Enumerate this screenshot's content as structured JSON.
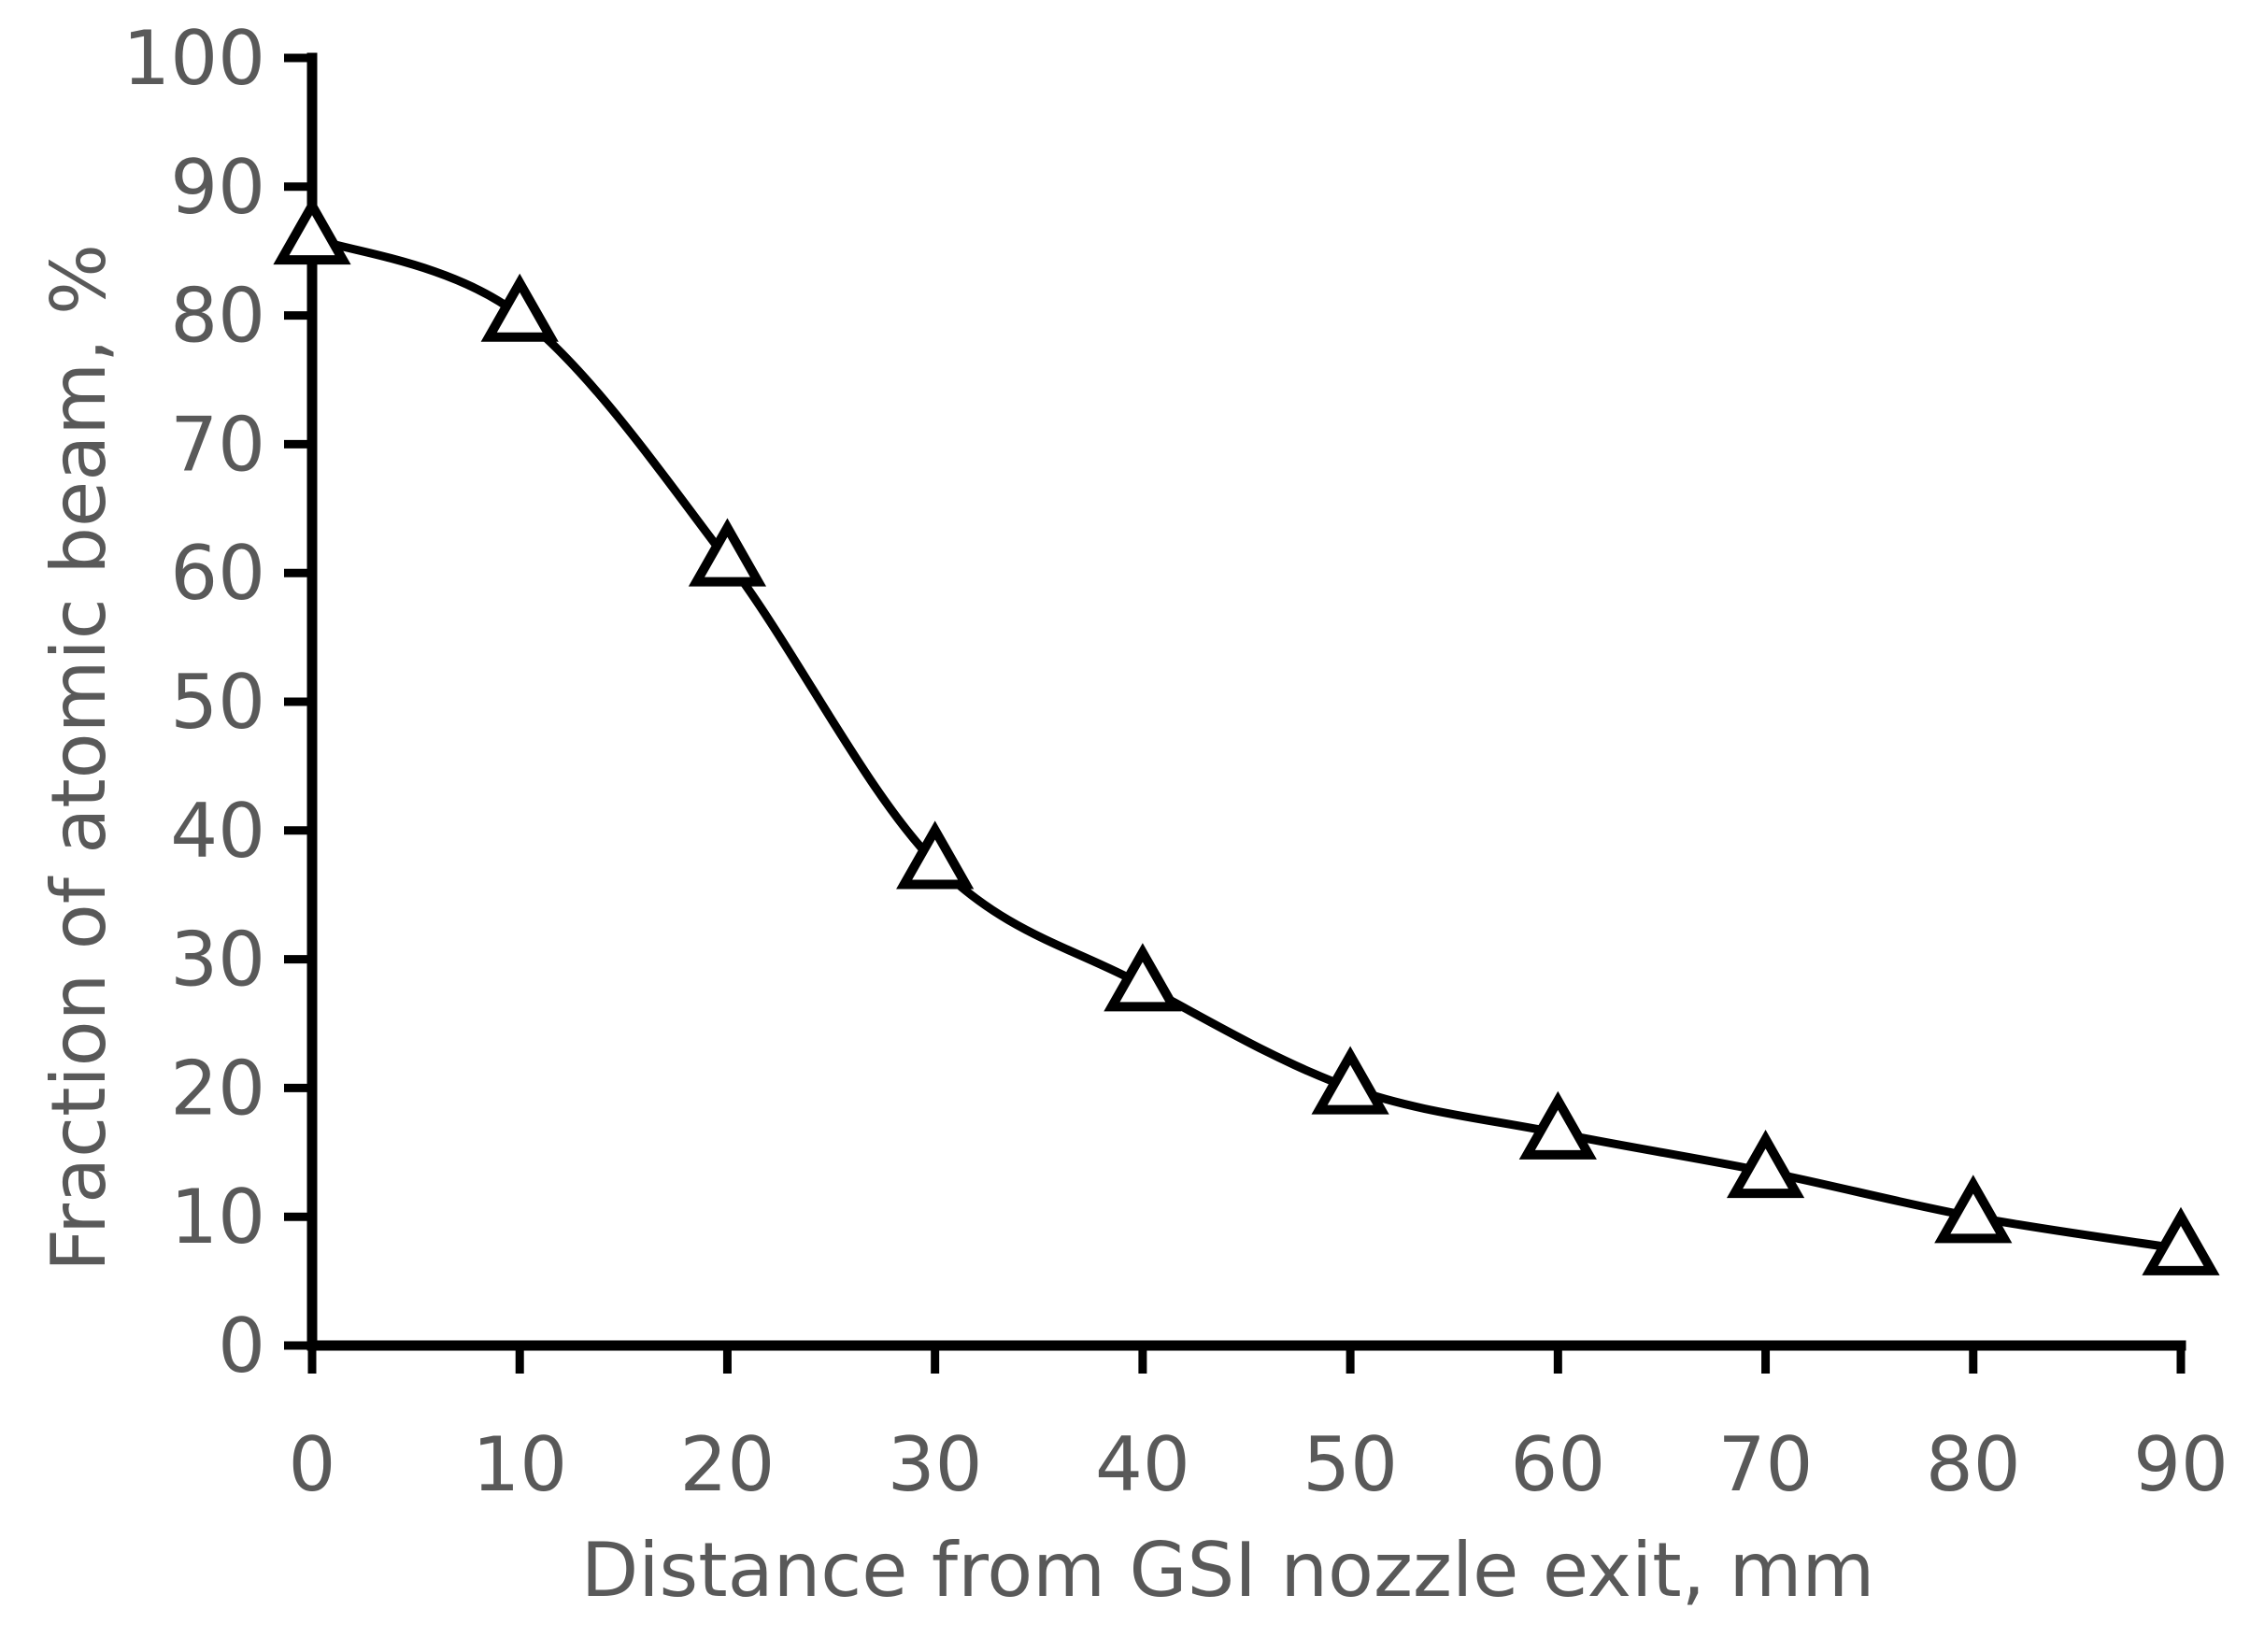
{
  "chart_data": {
    "type": "line",
    "title": "",
    "xlabel": "Distance from GSI nozzle exit, mm",
    "ylabel": "Fraction of atomic beam, %",
    "xlim": [
      0,
      90
    ],
    "ylim": [
      0,
      100
    ],
    "x_ticks": [
      "0",
      "10",
      "20",
      "30",
      "40",
      "50",
      "60",
      "70",
      "80",
      "90"
    ],
    "y_ticks": [
      "0",
      "10",
      "20",
      "30",
      "40",
      "50",
      "60",
      "70",
      "80",
      "90",
      "100"
    ],
    "grid": false,
    "legend": "none",
    "marker": "open-triangle",
    "smooth": true,
    "series": [
      {
        "x": [
          0,
          10,
          20,
          30,
          40,
          50,
          60,
          70,
          80,
          90
        ],
        "y": [
          86,
          80,
          61,
          37.5,
          28,
          20,
          16.5,
          13.5,
          10,
          7.5
        ]
      }
    ]
  }
}
